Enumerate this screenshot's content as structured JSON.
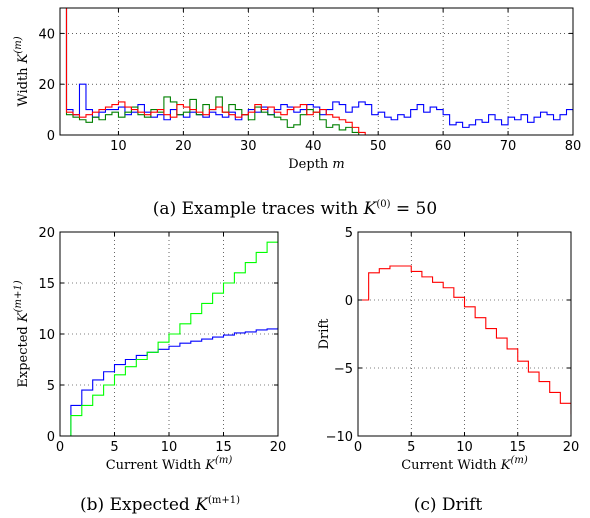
{
  "captions": {
    "a_prefix": "(a) Example traces with ",
    "a_var": "K",
    "a_sup": "(0)",
    "a_suffix": " = 50",
    "b_prefix": "(b) Expected ",
    "b_var": "K",
    "b_sup": "(m+1)",
    "c_text": "(c) Drift"
  },
  "chart_data": [
    {
      "id": "a",
      "type": "line",
      "step": true,
      "title": "(a) Example traces with K^(0) = 50",
      "xlabel": "Depth m",
      "xlabel_text": "Depth",
      "xlabel_var": "m",
      "ylabel": "Width K^(m)",
      "ylabel_text": "Width",
      "ylabel_var": "K",
      "ylabel_sup": "(m)",
      "xlim": [
        1,
        80
      ],
      "ylim": [
        0,
        50
      ],
      "xticks": [
        10,
        20,
        30,
        40,
        50,
        60,
        70,
        80
      ],
      "yticks": [
        0,
        20,
        40
      ],
      "grid": true,
      "series": [
        {
          "color": "#0000ff",
          "x": [
            1,
            2,
            3,
            4,
            5,
            6,
            7,
            8,
            9,
            10,
            11,
            12,
            13,
            14,
            15,
            16,
            17,
            18,
            19,
            20,
            21,
            22,
            23,
            24,
            25,
            26,
            27,
            28,
            29,
            30,
            31,
            32,
            33,
            34,
            35,
            36,
            37,
            38,
            39,
            40,
            41,
            42,
            43,
            44,
            45,
            46,
            47,
            48,
            49,
            50,
            51,
            52,
            53,
            54,
            55,
            56,
            57,
            58,
            59,
            60,
            61,
            62,
            63,
            64,
            65,
            66,
            67,
            68,
            69,
            70,
            71,
            72,
            73,
            74,
            75,
            76,
            77,
            78,
            79,
            80
          ],
          "y": [
            50,
            10,
            8,
            20,
            10,
            7,
            9,
            10,
            10,
            11,
            8,
            9,
            12,
            9,
            7,
            8,
            6,
            10,
            8,
            7,
            9,
            8,
            7,
            9,
            8,
            7,
            9,
            6,
            8,
            10,
            9,
            11,
            8,
            10,
            12,
            11,
            9,
            10,
            12,
            11,
            8,
            10,
            13,
            12,
            9,
            11,
            13,
            12,
            8,
            9,
            7,
            6,
            8,
            7,
            10,
            12,
            9,
            11,
            10,
            8,
            4,
            5,
            3,
            4,
            6,
            5,
            8,
            6,
            4,
            7,
            6,
            8,
            5,
            7,
            9,
            8,
            6,
            8,
            10,
            9
          ]
        },
        {
          "color": "#008000",
          "x": [
            1,
            2,
            3,
            4,
            5,
            6,
            7,
            8,
            9,
            10,
            11,
            12,
            13,
            14,
            15,
            16,
            17,
            18,
            19,
            20,
            21,
            22,
            23,
            24,
            25,
            26,
            27,
            28,
            29,
            30,
            31,
            32,
            33,
            34,
            35,
            36,
            37,
            38,
            39,
            40,
            41,
            42,
            43,
            44,
            45,
            46,
            47,
            48,
            80
          ],
          "y": [
            50,
            8,
            7,
            6,
            5,
            7,
            6,
            8,
            9,
            7,
            9,
            11,
            8,
            7,
            10,
            9,
            15,
            13,
            8,
            9,
            14,
            8,
            12,
            10,
            15,
            9,
            12,
            10,
            8,
            6,
            11,
            9,
            8,
            7,
            6,
            3,
            4,
            8,
            10,
            9,
            6,
            3,
            4,
            2,
            3,
            1,
            0,
            0,
            0
          ]
        },
        {
          "color": "#ff0000",
          "x": [
            1,
            2,
            3,
            4,
            5,
            6,
            7,
            8,
            9,
            10,
            11,
            12,
            13,
            14,
            15,
            16,
            17,
            18,
            19,
            20,
            21,
            22,
            23,
            24,
            25,
            26,
            27,
            28,
            29,
            30,
            31,
            32,
            33,
            34,
            35,
            36,
            37,
            38,
            39,
            40,
            41,
            42,
            43,
            44,
            45,
            46,
            47,
            48,
            49,
            50,
            51,
            52,
            53,
            54,
            55,
            56,
            57,
            58,
            59,
            60,
            61,
            62,
            63,
            64,
            65,
            66,
            67,
            68,
            69,
            70,
            71,
            72,
            73,
            74,
            75,
            76,
            77,
            78,
            79,
            80
          ],
          "y": [
            50,
            9,
            8,
            7,
            8,
            9,
            10,
            11,
            12,
            13,
            11,
            10,
            9,
            8,
            9,
            10,
            8,
            7,
            12,
            11,
            10,
            9,
            8,
            10,
            11,
            9,
            8,
            7,
            8,
            9,
            12,
            10,
            11,
            9,
            8,
            10,
            11,
            12,
            8,
            9,
            10,
            8,
            7,
            6,
            5,
            3,
            1,
            0,
            0,
            0,
            0,
            0,
            0,
            0,
            0,
            0,
            0,
            0,
            0,
            0,
            0,
            0,
            0,
            0,
            0,
            0,
            0,
            0,
            0,
            0,
            0,
            0,
            0,
            0,
            0,
            0,
            0,
            0,
            0,
            0
          ]
        }
      ]
    },
    {
      "id": "b",
      "type": "line",
      "step": true,
      "title": "(b) Expected K^(m+1)",
      "xlabel": "Current Width K^(m)",
      "xlabel_text": "Current Width",
      "xlabel_var": "K",
      "xlabel_sup": "(m)",
      "ylabel": "Expected K^(m+1)",
      "ylabel_text": "Expected",
      "ylabel_var": "K",
      "ylabel_sup": "(m+1)",
      "xlim": [
        0,
        20
      ],
      "ylim": [
        0,
        20
      ],
      "xticks": [
        0,
        5,
        10,
        15,
        20
      ],
      "yticks": [
        0,
        5,
        10,
        15,
        20
      ],
      "grid": true,
      "series": [
        {
          "color": "#0000ff",
          "x": [
            0,
            1,
            2,
            3,
            4,
            5,
            6,
            7,
            8,
            9,
            10,
            11,
            12,
            13,
            14,
            15,
            16,
            17,
            18,
            19,
            20
          ],
          "y": [
            0,
            3,
            4.5,
            5.5,
            6.3,
            7,
            7.5,
            7.9,
            8.2,
            8.5,
            8.8,
            9.1,
            9.3,
            9.5,
            9.7,
            9.9,
            10.1,
            10.2,
            10.4,
            10.5,
            10.7
          ]
        },
        {
          "color": "#00ff00",
          "x": [
            0,
            1,
            2,
            3,
            4,
            5,
            6,
            7,
            8,
            9,
            10,
            11,
            12,
            13,
            14,
            15,
            16,
            17,
            18,
            19,
            20
          ],
          "y": [
            0,
            2,
            3,
            4,
            5,
            6,
            6.8,
            7.5,
            8.2,
            9.2,
            10,
            11,
            12,
            13,
            14,
            15,
            16,
            17,
            18,
            19,
            20
          ]
        }
      ]
    },
    {
      "id": "c",
      "type": "line",
      "step": true,
      "title": "(c) Drift",
      "xlabel": "Current Width K^(m)",
      "xlabel_text": "Current Width",
      "xlabel_var": "K",
      "xlabel_sup": "(m)",
      "ylabel": "Drift",
      "ylabel_text": "Drift",
      "xlim": [
        0,
        20
      ],
      "ylim": [
        -10,
        5
      ],
      "xticks": [
        0,
        5,
        10,
        15,
        20
      ],
      "yticks": [
        -10,
        -5,
        0,
        5
      ],
      "grid": true,
      "series": [
        {
          "color": "#ff0000",
          "x": [
            0,
            1,
            2,
            3,
            4,
            5,
            6,
            7,
            8,
            9,
            10,
            11,
            12,
            13,
            14,
            15,
            16,
            17,
            18,
            19,
            20
          ],
          "y": [
            0,
            2,
            2.3,
            2.5,
            2.5,
            2.1,
            1.7,
            1.3,
            0.9,
            0.2,
            -0.5,
            -1.3,
            -2.1,
            -2.8,
            -3.6,
            -4.5,
            -5.3,
            -6,
            -6.8,
            -7.6,
            -8.4
          ]
        }
      ]
    }
  ]
}
